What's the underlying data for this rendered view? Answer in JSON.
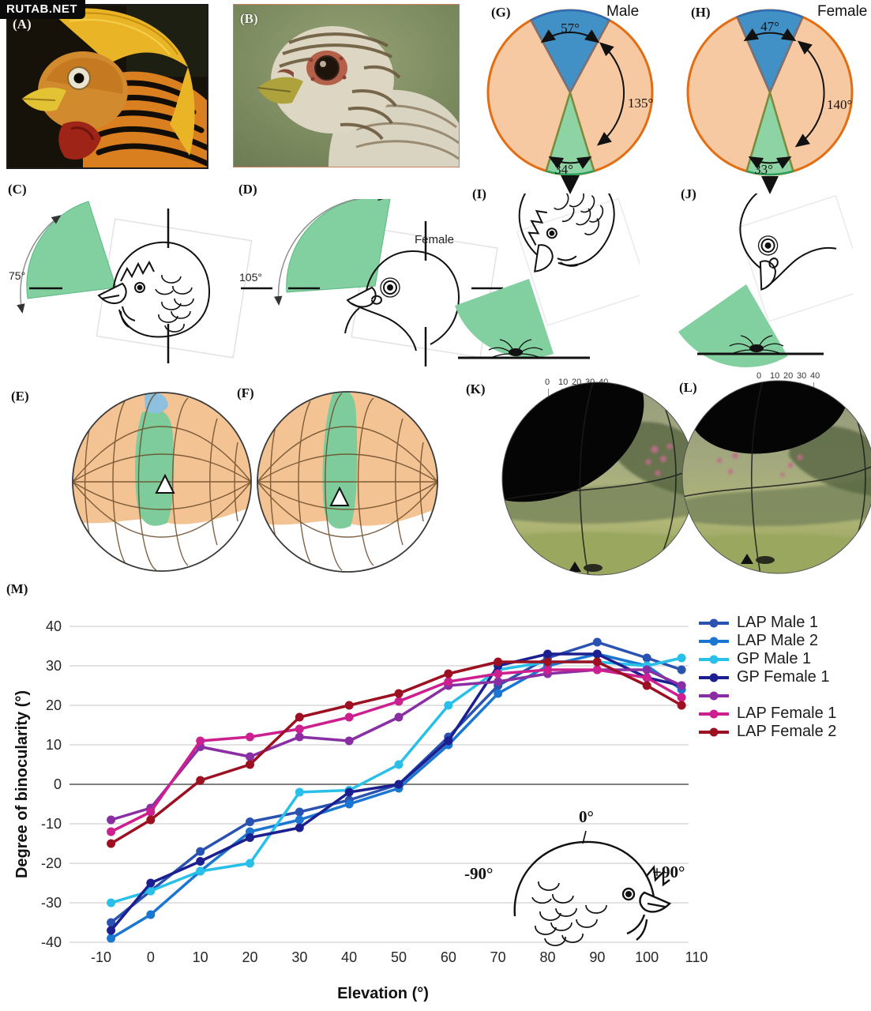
{
  "watermark": "RUTAB.NET",
  "panels": {
    "a": {
      "label": "(A)"
    },
    "b": {
      "label": "(B)"
    },
    "g": {
      "label": "(G)",
      "title": "Male",
      "top_angle": "57°",
      "side_angle": "135°",
      "bottom_angle": "34°"
    },
    "h": {
      "label": "(H)",
      "title": "Female",
      "top_angle": "47°",
      "side_angle": "140°",
      "bottom_angle": "33°"
    },
    "c": {
      "label": "(C)",
      "angle": "75°"
    },
    "d": {
      "label": "(D)",
      "angle": "105°",
      "caption": "Female"
    },
    "i": {
      "label": "(I)"
    },
    "j": {
      "label": "(J)"
    },
    "e": {
      "label": "(E)"
    },
    "f": {
      "label": "(F)"
    },
    "k": {
      "label": "(K)",
      "scale_ticks": [
        "0",
        "10",
        "20",
        "30",
        "40"
      ]
    },
    "l": {
      "label": "(L)",
      "scale_ticks": [
        "0",
        "10",
        "20",
        "30",
        "40"
      ]
    },
    "m": {
      "label": "(M)"
    }
  },
  "chart": {
    "legend": [
      {
        "label": "LAP Male 1",
        "color": "#2a52b0"
      },
      {
        "label": "LAP Male 2",
        "color": "#1b76d2"
      },
      {
        "label": "GP Male 1",
        "color": "#28c0e8"
      },
      {
        "label": "GP Female 1",
        "color": "#1c1f8f"
      },
      {
        "label": "",
        "color": "#8a2fa3"
      },
      {
        "label": "LAP Female 1",
        "color": "#cc2090"
      },
      {
        "label": "LAP Female 2",
        "color": "#9c1022"
      }
    ]
  },
  "chart_data": {
    "type": "line",
    "title": "",
    "xlabel": "Elevation (°)",
    "ylabel": "Degree of binocularity (°)",
    "xlim": [
      -10,
      110
    ],
    "ylim": [
      -40,
      40
    ],
    "x_ticks": [
      -10,
      0,
      10,
      20,
      30,
      40,
      50,
      60,
      70,
      80,
      90,
      100,
      110
    ],
    "y_ticks": [
      40,
      30,
      20,
      10,
      0,
      -10,
      -20,
      -30,
      -40
    ],
    "grid": "horizontal",
    "legend_position": "right",
    "x": [
      -8,
      0,
      10,
      20,
      30,
      40,
      50,
      60,
      70,
      80,
      90,
      100,
      107
    ],
    "series": [
      {
        "name": "LAP Male 1",
        "color": "#2a52b0",
        "values": [
          -35,
          -27,
          -17,
          -9.5,
          -7,
          -4,
          0,
          12,
          25,
          32,
          36,
          32,
          29
        ]
      },
      {
        "name": "LAP Male 2",
        "color": "#1b76d2",
        "values": [
          -39,
          -33,
          -22,
          -12,
          -9,
          -5,
          -1,
          10,
          23,
          30,
          33,
          30,
          24
        ]
      },
      {
        "name": "GP Male 1",
        "color": "#28c0e8",
        "values": [
          -30,
          -27,
          -22,
          -20,
          -2,
          -1.5,
          5,
          20,
          29,
          31,
          31,
          30,
          32
        ]
      },
      {
        "name": "GP Female 1",
        "color": "#1c1f8f",
        "values": [
          -37,
          -25,
          -19.5,
          -13.5,
          -11,
          -2,
          0,
          11,
          30,
          33,
          33,
          27,
          25
        ]
      },
      {
        "name": "",
        "color": "#8a2fa3",
        "values": [
          -9,
          -6,
          9.5,
          7,
          12,
          11,
          17,
          25,
          26,
          28,
          29,
          29,
          25
        ]
      },
      {
        "name": "LAP Female 1",
        "color": "#cc2090",
        "values": [
          -12,
          -7,
          11,
          12,
          14,
          17,
          21,
          26,
          28,
          29,
          29,
          27,
          22
        ]
      },
      {
        "name": "LAP Female 2",
        "color": "#9c1022",
        "values": [
          -15,
          -9,
          1,
          5,
          17,
          20,
          23,
          28,
          31,
          31,
          31,
          25,
          20
        ]
      }
    ],
    "inset_labels": {
      "top": "0°",
      "left": "-90°",
      "right": "+90°"
    }
  }
}
